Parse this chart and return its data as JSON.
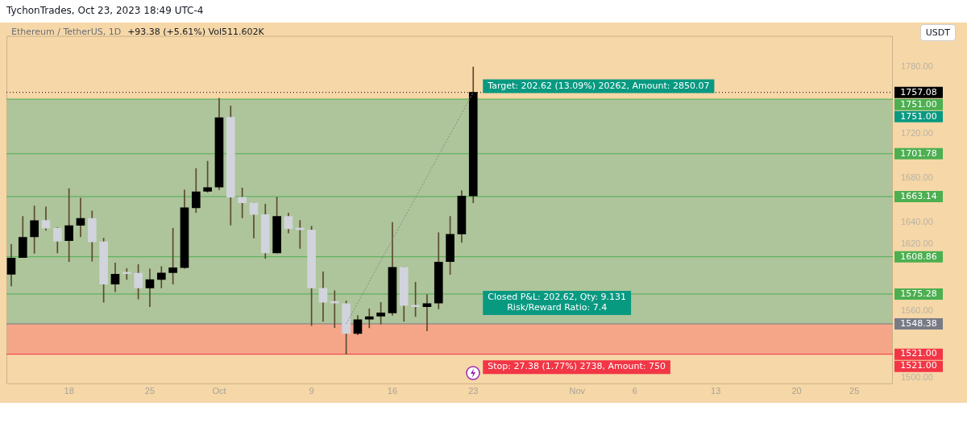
{
  "chart_data": {
    "type": "candlestick",
    "title": "Ethereum / TetherUS, 1D",
    "subtitle": "+93.38 (+5.61%) Vol511.602K",
    "x": [
      "2023-09-13",
      "2023-09-14",
      "2023-09-15",
      "2023-09-16",
      "2023-09-17",
      "2023-09-18",
      "2023-09-19",
      "2023-09-20",
      "2023-09-21",
      "2023-09-22",
      "2023-09-23",
      "2023-09-24",
      "2023-09-25",
      "2023-09-26",
      "2023-09-27",
      "2023-09-28",
      "2023-09-29",
      "2023-09-30",
      "2023-10-01",
      "2023-10-02",
      "2023-10-03",
      "2023-10-04",
      "2023-10-05",
      "2023-10-06",
      "2023-10-07",
      "2023-10-08",
      "2023-10-09",
      "2023-10-10",
      "2023-10-11",
      "2023-10-12",
      "2023-10-13",
      "2023-10-14",
      "2023-10-15",
      "2023-10-16",
      "2023-10-17",
      "2023-10-18",
      "2023-10-19",
      "2023-10-20",
      "2023-10-21",
      "2023-10-22",
      "2023-10-23"
    ],
    "ohlc": [
      [
        1593.1,
        1620.1,
        1582.6,
        1607.6
      ],
      [
        1608.1,
        1645.2,
        1608.1,
        1626.4
      ],
      [
        1626.9,
        1654.8,
        1611.9,
        1641.4
      ],
      [
        1641.6,
        1653.8,
        1632.7,
        1634.6
      ],
      [
        1634.6,
        1635.1,
        1612.3,
        1622.9
      ],
      [
        1623.4,
        1670.3,
        1604.6,
        1637.0
      ],
      [
        1637.2,
        1661.8,
        1626.9,
        1643.5
      ],
      [
        1643.5,
        1650.1,
        1604.8,
        1622.4
      ],
      [
        1622.4,
        1625.7,
        1567.8,
        1584.2
      ],
      [
        1584.2,
        1603.4,
        1577.2,
        1593.1
      ],
      [
        1593.6,
        1598.3,
        1588.4,
        1593.6
      ],
      [
        1594.0,
        1601.8,
        1570.8,
        1580.7
      ],
      [
        1580.7,
        1597.8,
        1563.8,
        1588.2
      ],
      [
        1588.4,
        1600.1,
        1580.7,
        1594.3
      ],
      [
        1594.5,
        1634.6,
        1584.2,
        1599.0
      ],
      [
        1599.0,
        1669.1,
        1598.3,
        1653.1
      ],
      [
        1653.1,
        1688.5,
        1648.7,
        1667.4
      ],
      [
        1667.9,
        1695.1,
        1667.0,
        1671.2
      ],
      [
        1671.7,
        1751.9,
        1669.3,
        1734.3
      ],
      [
        1734.7,
        1744.8,
        1637.4,
        1662.7
      ],
      [
        1662.5,
        1670.9,
        1644.0,
        1657.6
      ],
      [
        1657.4,
        1657.4,
        1625.7,
        1647.0
      ],
      [
        1647.0,
        1656.4,
        1607.2,
        1612.3
      ],
      [
        1612.3,
        1662.7,
        1612.3,
        1645.2
      ],
      [
        1645.2,
        1648.2,
        1630.4,
        1634.1
      ],
      [
        1633.9,
        1641.6,
        1616.3,
        1633.2
      ],
      [
        1633.0,
        1636.3,
        1546.7,
        1580.7
      ],
      [
        1580.4,
        1595.4,
        1550.6,
        1567.8
      ],
      [
        1567.8,
        1578.3,
        1545.0,
        1567.1
      ],
      [
        1566.6,
        1569.0,
        1520.9,
        1539.6
      ],
      [
        1539.6,
        1556.0,
        1538.5,
        1552.1
      ],
      [
        1552.5,
        1561.9,
        1544.8,
        1554.9
      ],
      [
        1555.3,
        1567.8,
        1548.3,
        1558.2
      ],
      [
        1558.2,
        1639.8,
        1556.0,
        1599.4
      ],
      [
        1599.4,
        1599.4,
        1550.6,
        1565.0
      ],
      [
        1565.2,
        1585.8,
        1554.9,
        1563.8
      ],
      [
        1563.8,
        1574.8,
        1542.0,
        1566.6
      ],
      [
        1567.1,
        1630.6,
        1561.9,
        1604.1
      ],
      [
        1604.6,
        1645.2,
        1592.9,
        1629.2
      ],
      [
        1629.4,
        1668.6,
        1621.7,
        1663.7
      ],
      [
        1663.7,
        1780.0,
        1657.6,
        1757.08
      ]
    ],
    "colors": [
      "#000000",
      "#000000",
      "#000000",
      "#d1d4dc",
      "#d1d4dc",
      "#000000",
      "#000000",
      "#d1d4dc",
      "#d1d4dc",
      "#000000",
      "#d1d4dc",
      "#d1d4dc",
      "#000000",
      "#000000",
      "#000000",
      "#000000",
      "#000000",
      "#000000",
      "#000000",
      "#d1d4dc",
      "#d1d4dc",
      "#d1d4dc",
      "#d1d4dc",
      "#000000",
      "#d1d4dc",
      "#d1d4dc",
      "#d1d4dc",
      "#d1d4dc",
      "#d1d4dc",
      "#d1d4dc",
      "#000000",
      "#000000",
      "#000000",
      "#000000",
      "#d1d4dc",
      "#d1d4dc",
      "#000000",
      "#000000",
      "#000000",
      "#000000",
      "#000000"
    ],
    "series": [
      {
        "type": "line",
        "x": [
          "2023-10-12",
          "2023-10-23"
        ],
        "values": [
          1548.38,
          1757.08
        ],
        "color": "#8a8a8a",
        "line_style": "dashed"
      }
    ],
    "xlim": [
      "2023-09-12T14:00",
      "2023-11-28T08:00"
    ],
    "xticks": [
      {
        "value": "2023-09-18",
        "label": "18"
      },
      {
        "value": "2023-09-25",
        "label": "25"
      },
      {
        "value": "2023-10-01",
        "label": "Oct"
      },
      {
        "value": "2023-10-09",
        "label": "9"
      },
      {
        "value": "2023-10-16",
        "label": "16"
      },
      {
        "value": "2023-10-23",
        "label": "23"
      },
      {
        "value": "2023-11-01",
        "label": "Nov"
      },
      {
        "value": "2023-11-06",
        "label": "6"
      },
      {
        "value": "2023-11-13",
        "label": "13"
      },
      {
        "value": "2023-11-20",
        "label": "20"
      },
      {
        "value": "2023-11-25",
        "label": "25"
      }
    ],
    "ylim": [
      1494,
      1808
    ],
    "yticks": [
      {
        "value": 1500,
        "label": "1500.00"
      },
      {
        "value": 1560,
        "label": "1560.00"
      },
      {
        "value": 1620,
        "label": "1620.00"
      },
      {
        "value": 1640,
        "label": "1640.00"
      },
      {
        "value": 1680,
        "label": "1680.00"
      },
      {
        "value": 1720,
        "label": "1720.00"
      },
      {
        "value": 1780,
        "label": "1780.00"
      }
    ],
    "bands": [
      {
        "axis": "y",
        "from": 1548.38,
        "to": 1751,
        "label": "1751.00",
        "color": "#089981"
      },
      {
        "axis": "y",
        "from": 1521,
        "to": 1548.38,
        "label": "1521.00",
        "color": "#f23645"
      }
    ],
    "ref_lines": [
      {
        "axis": "y",
        "value": 1757.08,
        "label": "1757.08",
        "color": "#000000",
        "line_style": "dotted"
      },
      {
        "axis": "y",
        "value": 1751,
        "label": "1751.00",
        "color": "#4caf50"
      },
      {
        "axis": "y",
        "value": 1701.78,
        "label": "1701.78",
        "color": "#4caf50"
      },
      {
        "axis": "y",
        "value": 1663.14,
        "label": "1663.14",
        "color": "#4caf50"
      },
      {
        "axis": "y",
        "value": 1608.86,
        "label": "1608.86",
        "color": "#4caf50"
      },
      {
        "axis": "y",
        "value": 1575.28,
        "label": "1575.28",
        "color": "#4caf50"
      },
      {
        "axis": "y",
        "value": 1548.38,
        "label": "1548.38",
        "color": "#787b86"
      },
      {
        "axis": "y",
        "value": 1521,
        "label": "1521.00",
        "color": "#f23645"
      }
    ],
    "annotations": [
      "TychonTrades, Oct 23, 2023 18:49 UTC-4",
      "USDT",
      "Target: 202.62 (13.09%) 20262, Amount: 2850.07",
      "Closed P&L: 202.62, Qty: 9.131\nRisk/Reward Ratio: 7.4",
      "Stop: 27.38 (1.77%) 2738, Amount: 750"
    ]
  }
}
